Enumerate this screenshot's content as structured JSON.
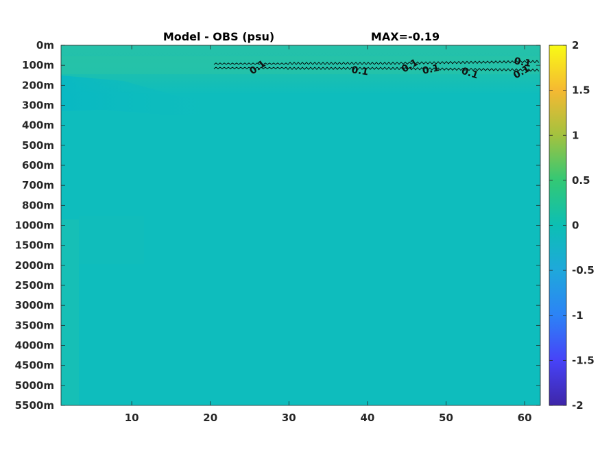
{
  "chart_data": {
    "type": "heatmap",
    "title": "Model - OBS (psu)",
    "annotation": "MAX=-0.19",
    "x_ticks": [
      10,
      20,
      30,
      40,
      50,
      60
    ],
    "xlim": [
      1,
      62
    ],
    "y_ticks": [
      "0m",
      "100m",
      "200m",
      "300m",
      "400m",
      "500m",
      "600m",
      "700m",
      "800m",
      "1000m",
      "1500m",
      "2000m",
      "2500m",
      "3000m",
      "3500m",
      "4000m",
      "4500m",
      "5000m",
      "5500m"
    ],
    "colorbar": {
      "ticks": [
        "2",
        "1.5",
        "1",
        "0.5",
        "0",
        "-0.5",
        "-1",
        "-1.5",
        "-2"
      ],
      "range": [
        -2,
        2
      ],
      "colormap": [
        "#3e26a8",
        "#4743f8",
        "#2c83f6",
        "#1fa8db",
        "#0cbfb4",
        "#33c875",
        "#a3c23f",
        "#f5b932",
        "#f9fb15"
      ]
    },
    "background_value": 0,
    "background_color": "#0ebdbd",
    "contour": {
      "level": 0.1,
      "labels": [
        "0.1",
        "0.1",
        "0.1",
        "0.1",
        "0.1",
        "0.1",
        "0.1"
      ]
    }
  }
}
